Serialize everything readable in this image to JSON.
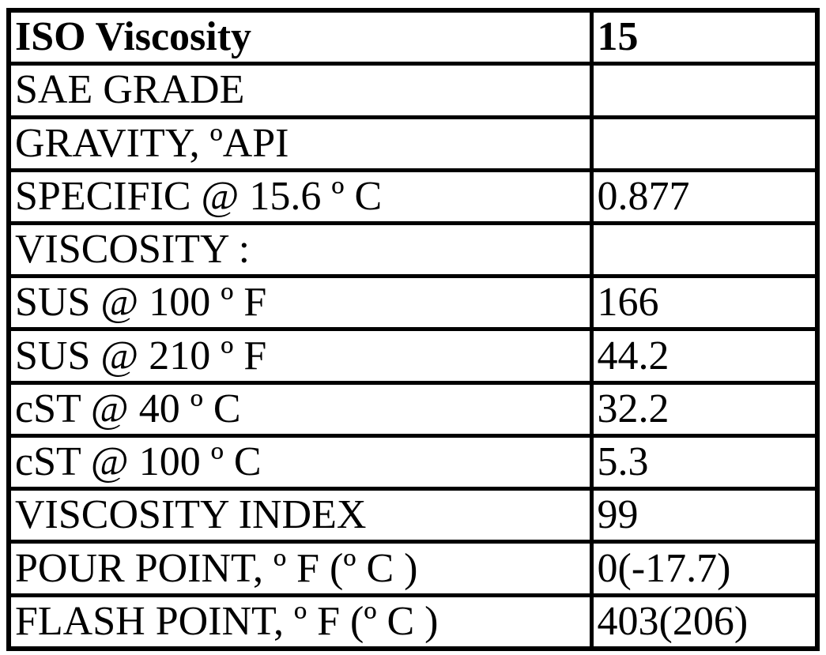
{
  "table": {
    "colors": {
      "border": "#000000",
      "text": "#000000",
      "background": "#ffffff"
    },
    "rows": [
      {
        "label": "ISO Viscosity",
        "value": "15"
      },
      {
        "label": "SAE GRADE",
        "value": ""
      },
      {
        "label": "GRAVITY, ºAPI",
        "value": ""
      },
      {
        "label": "SPECIFIC @ 15.6 º C",
        "value": "0.877"
      },
      {
        "label": "VISCOSITY :",
        "value": ""
      },
      {
        "label": "SUS @ 100 º F",
        "value": "166"
      },
      {
        "label": "SUS @ 210 º F",
        "value": "44.2"
      },
      {
        "label": "cST @ 40 º C",
        "value": "32.2"
      },
      {
        "label": "cST @ 100 º C",
        "value": "5.3"
      },
      {
        "label": "VISCOSITY INDEX",
        "value": "99"
      },
      {
        "label": "POUR POINT, º F (º C )",
        "value": "0(-17.7)"
      },
      {
        "label": "FLASH POINT, º F (º C )",
        "value": "403(206)"
      }
    ]
  }
}
